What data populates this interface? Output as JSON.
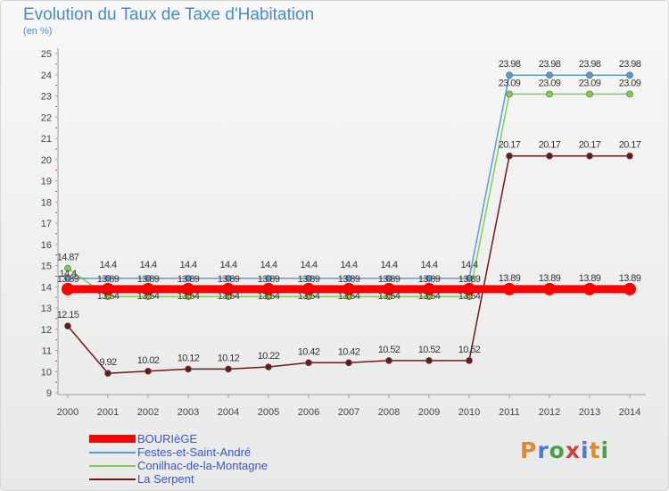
{
  "chart_data": {
    "type": "line",
    "title": "Evolution du Taux de Taxe d'Habitation",
    "ylabel": "(en %)",
    "xlabel": "",
    "ylim": [
      9,
      25
    ],
    "yticks": [
      9,
      10,
      11,
      12,
      13,
      14,
      15,
      16,
      17,
      18,
      19,
      20,
      21,
      22,
      23,
      24,
      25
    ],
    "categories": [
      "2000",
      "2001",
      "2002",
      "2003",
      "2004",
      "2005",
      "2006",
      "2007",
      "2008",
      "2009",
      "2010",
      "2011",
      "2012",
      "2013",
      "2014"
    ],
    "series": [
      {
        "name": "BOURIèGE",
        "color": "#ff0000",
        "values": [
          13.89,
          13.89,
          13.89,
          13.89,
          13.89,
          13.89,
          13.89,
          13.89,
          13.89,
          13.89,
          13.89,
          13.89,
          13.89,
          13.89,
          13.89
        ],
        "labels": [
          "13.89",
          "13.89",
          "13.89",
          "13.89",
          "13.89",
          "13.89",
          "13.89",
          "13.89",
          "13.89",
          "13.89",
          "13.89",
          "13.89",
          "13.89",
          "13.89",
          "13.89"
        ]
      },
      {
        "name": "Festes-et-Saint-André",
        "color": "#5a9ad6",
        "values": [
          14.4,
          14.4,
          14.4,
          14.4,
          14.4,
          14.4,
          14.4,
          14.4,
          14.4,
          14.4,
          14.4,
          23.98,
          23.98,
          23.98,
          23.98
        ],
        "labels": [
          "14.4",
          "14.4",
          "14.4",
          "14.4",
          "14.4",
          "14.4",
          "14.4",
          "14.4",
          "14.4",
          "14.4",
          "14.4",
          "23.98",
          "23.98",
          "23.98",
          "23.98"
        ]
      },
      {
        "name": "Conilhac-de-la-Montagne",
        "color": "#7fcf4f",
        "values": [
          14.87,
          13.54,
          13.54,
          13.54,
          13.54,
          13.54,
          13.54,
          13.54,
          13.54,
          13.54,
          13.54,
          23.09,
          23.09,
          23.09,
          23.09
        ],
        "labels": [
          "14.87",
          "13.54",
          "13.54",
          "13.54",
          "13.54",
          "13.54",
          "13.54",
          "13.54",
          "13.54",
          "13.54",
          "13.54",
          "23.09",
          "23.09",
          "23.09",
          "23.09"
        ]
      },
      {
        "name": "La Serpent",
        "color": "#6b1a1a",
        "values": [
          12.15,
          9.92,
          10.02,
          10.12,
          10.12,
          10.22,
          10.42,
          10.42,
          10.52,
          10.52,
          10.52,
          20.17,
          20.17,
          20.17,
          20.17
        ],
        "labels": [
          "12.15",
          "9.92",
          "10.02",
          "10.12",
          "10.12",
          "10.22",
          "10.42",
          "10.42",
          "10.52",
          "10.52",
          "10.52",
          "20.17",
          "20.17",
          "20.17",
          "20.17"
        ]
      }
    ],
    "legend_position": "bottom-left",
    "grid": false
  },
  "branding": {
    "logo_letters": [
      "P",
      "r",
      "o",
      "x",
      "i",
      "t",
      "i"
    ]
  }
}
